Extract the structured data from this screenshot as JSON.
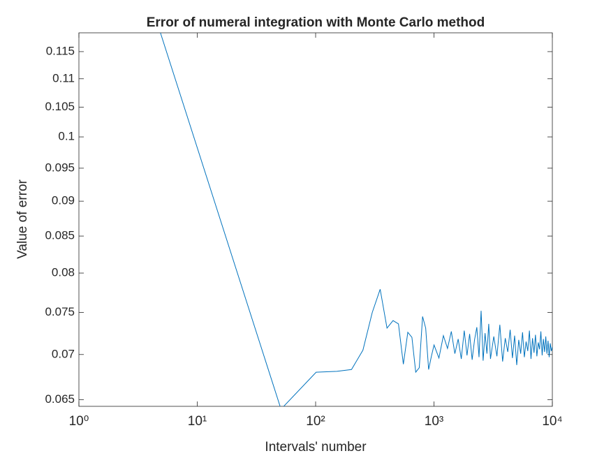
{
  "chart_data": {
    "type": "line",
    "title": "Error of numeral integration with Monte Carlo method",
    "xlabel": "Intervals' number",
    "ylabel": "Value of error",
    "xscale": "log",
    "yscale": "log",
    "xlim": [
      1,
      10000
    ],
    "ylim": [
      0.0643,
      0.1186
    ],
    "xticks": [
      {
        "value": 1,
        "label": "10⁰"
      },
      {
        "value": 10,
        "label": "10¹"
      },
      {
        "value": 100,
        "label": "10²"
      },
      {
        "value": 1000,
        "label": "10³"
      },
      {
        "value": 10000,
        "label": "10⁴"
      }
    ],
    "yticks": [
      0.065,
      0.07,
      0.075,
      0.08,
      0.085,
      0.09,
      0.095,
      0.1,
      0.105,
      0.11,
      0.115
    ],
    "series": [
      {
        "name": "error",
        "color": "#0072bd",
        "x": [
          1,
          51,
          101,
          151,
          201,
          251,
          301,
          351,
          401,
          451,
          501,
          551,
          601,
          651,
          701,
          751,
          801,
          851,
          901,
          951,
          1001,
          1101,
          1201,
          1301,
          1401,
          1501,
          1601,
          1701,
          1801,
          1901,
          2001,
          2101,
          2201,
          2301,
          2401,
          2501,
          2601,
          2701,
          2801,
          2901,
          3001,
          3201,
          3401,
          3601,
          3801,
          4001,
          4201,
          4401,
          4601,
          4801,
          5001,
          5201,
          5401,
          5601,
          5801,
          6001,
          6201,
          6401,
          6601,
          6801,
          7001,
          7201,
          7401,
          7601,
          7801,
          8001,
          8201,
          8401,
          8601,
          8801,
          9001,
          9201,
          9401,
          9601,
          9801,
          10000
        ],
        "values": [
          0.18,
          0.064,
          0.068,
          0.0681,
          0.0683,
          0.0705,
          0.075,
          0.0779,
          0.0731,
          0.074,
          0.0736,
          0.0689,
          0.0726,
          0.072,
          0.068,
          0.0685,
          0.0745,
          0.0731,
          0.0683,
          0.0698,
          0.0711,
          0.0696,
          0.0722,
          0.0707,
          0.0727,
          0.0701,
          0.0718,
          0.0695,
          0.0728,
          0.0699,
          0.0724,
          0.0694,
          0.0717,
          0.0732,
          0.0697,
          0.0752,
          0.0693,
          0.0725,
          0.0701,
          0.0736,
          0.0695,
          0.0721,
          0.0698,
          0.0735,
          0.0692,
          0.0719,
          0.0703,
          0.0729,
          0.0696,
          0.0722,
          0.0688,
          0.0717,
          0.0701,
          0.0726,
          0.0697,
          0.0715,
          0.0704,
          0.0728,
          0.0695,
          0.0719,
          0.0702,
          0.0723,
          0.0698,
          0.0714,
          0.0706,
          0.0727,
          0.0699,
          0.0718,
          0.0703,
          0.0721,
          0.0701,
          0.0716,
          0.0697,
          0.0713,
          0.0704,
          0.0709
        ]
      }
    ]
  }
}
